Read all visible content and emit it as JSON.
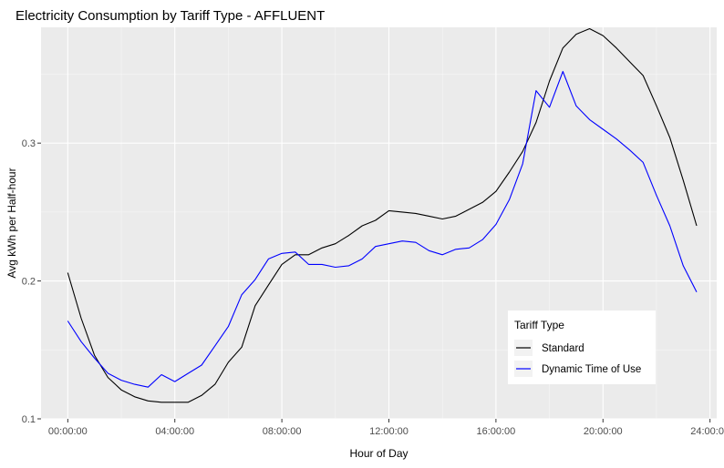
{
  "chart_data": {
    "type": "line",
    "title": "Electricity Consumption by Tariff Type - AFFLUENT",
    "xlabel": "Hour of Day",
    "ylabel": "Avg kWh per Half-hour",
    "x_ticks": [
      "00:00:00",
      "04:00:00",
      "08:00:00",
      "12:00:00",
      "16:00:00",
      "20:00:00",
      "24:00:00"
    ],
    "y_ticks": [
      "0.1",
      "0.2",
      "0.3"
    ],
    "xlim": [
      -1.0,
      24.25
    ],
    "ylim": [
      0.1,
      0.384
    ],
    "grid": true,
    "legend_title": "Tariff Type",
    "legend_position": "bottom-right inside",
    "x_hours": [
      0,
      0.5,
      1,
      1.5,
      2,
      2.5,
      3,
      3.5,
      4,
      4.5,
      5,
      5.5,
      6,
      6.5,
      7,
      7.5,
      8,
      8.5,
      9,
      9.5,
      10,
      10.5,
      11,
      11.5,
      12,
      12.5,
      13,
      13.5,
      14,
      14.5,
      15,
      15.5,
      16,
      16.5,
      17,
      17.5,
      18,
      18.5,
      19,
      19.5,
      20,
      20.5,
      21,
      21.5,
      22,
      22.5,
      23,
      23.5
    ],
    "series": [
      {
        "name": "Standard",
        "color": "#000000",
        "values": [
          0.206,
          0.173,
          0.146,
          0.13,
          0.121,
          0.116,
          0.113,
          0.112,
          0.112,
          0.112,
          0.117,
          0.125,
          0.141,
          0.152,
          0.182,
          0.197,
          0.212,
          0.219,
          0.219,
          0.224,
          0.227,
          0.233,
          0.24,
          0.244,
          0.251,
          0.25,
          0.249,
          0.247,
          0.245,
          0.247,
          0.252,
          0.257,
          0.265,
          0.279,
          0.294,
          0.315,
          0.345,
          0.369,
          0.379,
          0.383,
          0.378,
          0.369,
          0.359,
          0.349,
          0.327,
          0.304,
          0.273,
          0.24
        ]
      },
      {
        "name": "Dynamic Time of Use",
        "color": "#0000ff",
        "values": [
          0.171,
          0.156,
          0.144,
          0.133,
          0.128,
          0.125,
          0.123,
          0.132,
          0.127,
          0.133,
          0.139,
          0.153,
          0.167,
          0.19,
          0.201,
          0.216,
          0.22,
          0.221,
          0.212,
          0.212,
          0.21,
          0.211,
          0.216,
          0.225,
          0.227,
          0.229,
          0.228,
          0.222,
          0.219,
          0.223,
          0.224,
          0.23,
          0.241,
          0.259,
          0.285,
          0.338,
          0.326,
          0.352,
          0.327,
          0.317,
          0.31,
          0.303,
          0.295,
          0.286,
          0.262,
          0.24,
          0.211,
          0.192
        ]
      }
    ]
  }
}
